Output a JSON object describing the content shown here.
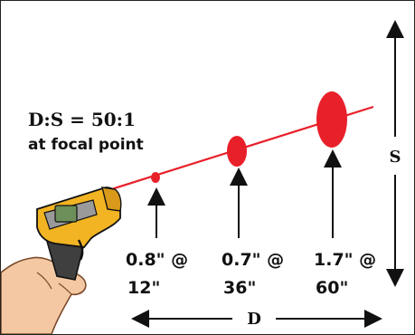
{
  "spec": {
    "ratio_line": "D:S = 50:1",
    "focal_line": "at focal point"
  },
  "spots": [
    {
      "size_line": "0.8\" @",
      "distance_line": "12\""
    },
    {
      "size_line": "0.7\" @",
      "distance_line": "36\""
    },
    {
      "size_line": "1.7\" @",
      "distance_line": "60\""
    }
  ],
  "axes": {
    "size_label": "S",
    "distance_label": "D"
  },
  "colors": {
    "beam": "#e8202a",
    "thermometer_body": "#f2b422",
    "thermometer_grip": "#444444",
    "screen": "#6d8f5a",
    "skin": "#f4c8a2"
  }
}
